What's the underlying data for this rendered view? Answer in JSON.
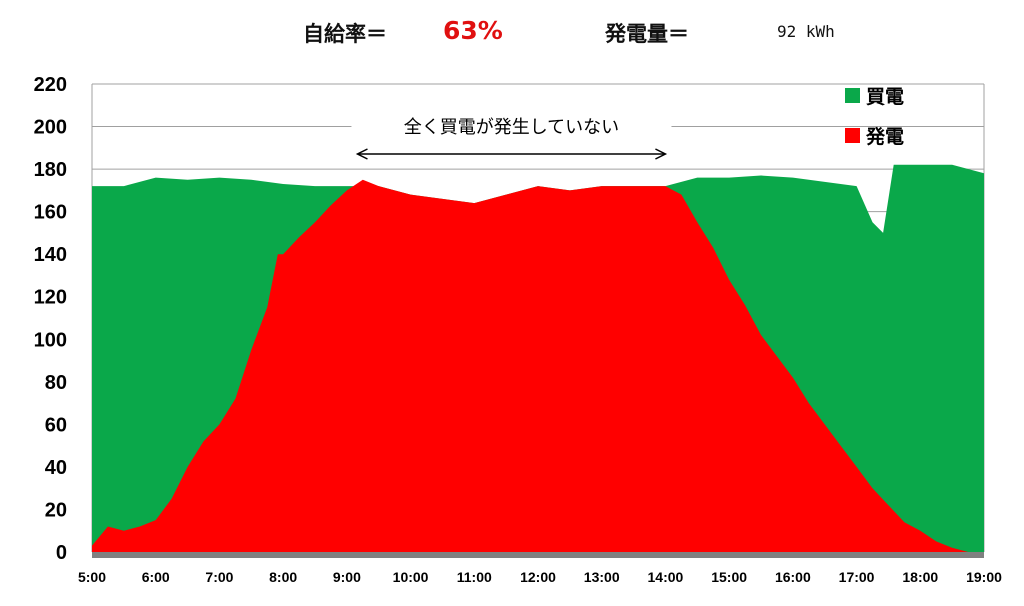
{
  "header": {
    "self_sufficiency_label": "自給率＝",
    "self_sufficiency_value": "63%",
    "generation_label": "発電量＝",
    "generation_value": "92 kWh"
  },
  "colors": {
    "purchased": "#0aa84a",
    "generated": "#ff0000",
    "baseline": "#808080",
    "grid": "#a0a0a0",
    "header_value": "#e01010"
  },
  "chart_data": {
    "type": "area",
    "title": "",
    "xlabel": "",
    "ylabel": "",
    "ylim": [
      0,
      220
    ],
    "y_ticks": [
      "0",
      "20",
      "40",
      "60",
      "80",
      "100",
      "120",
      "140",
      "160",
      "180",
      "200",
      "220"
    ],
    "x_ticks": [
      "5:00",
      "6:00",
      "7:00",
      "8:00",
      "9:00",
      "10:00",
      "11:00",
      "12:00",
      "13:00",
      "14:00",
      "15:00",
      "16:00",
      "17:00",
      "18:00",
      "19:00"
    ],
    "grid": true,
    "legend_position": "top-right",
    "legend": [
      "買電",
      "発電"
    ],
    "annotation": "全く買電が発生していない",
    "annotation_range": [
      "9:10",
      "14:00"
    ],
    "series": [
      {
        "name": "買電",
        "x": [
          "5:00",
          "5:30",
          "6:00",
          "6:30",
          "7:00",
          "7:30",
          "8:00",
          "8:30",
          "9:00",
          "9:30",
          "10:00",
          "10:30",
          "11:00",
          "11:30",
          "12:00",
          "12:30",
          "13:00",
          "13:30",
          "14:00",
          "14:30",
          "15:00",
          "15:30",
          "16:00",
          "16:30",
          "17:00",
          "17:15",
          "17:25",
          "17:35",
          "18:00",
          "18:30",
          "19:00"
        ],
        "values": [
          172,
          172,
          176,
          175,
          176,
          175,
          173,
          172,
          172,
          172,
          168,
          166,
          164,
          168,
          172,
          170,
          172,
          172,
          172,
          176,
          176,
          177,
          176,
          174,
          172,
          155,
          150,
          182,
          182,
          182,
          178
        ]
      },
      {
        "name": "発電",
        "x": [
          "5:00",
          "5:15",
          "5:30",
          "5:45",
          "6:00",
          "6:15",
          "6:30",
          "6:45",
          "7:00",
          "7:15",
          "7:30",
          "7:45",
          "7:55",
          "8:00",
          "8:15",
          "8:30",
          "8:45",
          "9:00",
          "9:15",
          "9:30",
          "10:00",
          "10:30",
          "11:00",
          "11:30",
          "12:00",
          "12:30",
          "13:00",
          "13:30",
          "14:00",
          "14:15",
          "14:30",
          "14:45",
          "15:00",
          "15:15",
          "15:30",
          "15:45",
          "16:00",
          "16:15",
          "16:30",
          "16:45",
          "17:00",
          "17:15",
          "17:30",
          "17:45",
          "18:00",
          "18:15",
          "18:30",
          "18:45",
          "19:00"
        ],
        "values": [
          3,
          12,
          10,
          12,
          15,
          25,
          40,
          52,
          60,
          72,
          95,
          115,
          140,
          140,
          148,
          155,
          163,
          170,
          175,
          172,
          168,
          166,
          164,
          168,
          172,
          170,
          172,
          172,
          172,
          168,
          155,
          143,
          128,
          116,
          102,
          92,
          82,
          70,
          60,
          50,
          40,
          30,
          22,
          14,
          10,
          5,
          2,
          0,
          0
        ]
      }
    ]
  }
}
